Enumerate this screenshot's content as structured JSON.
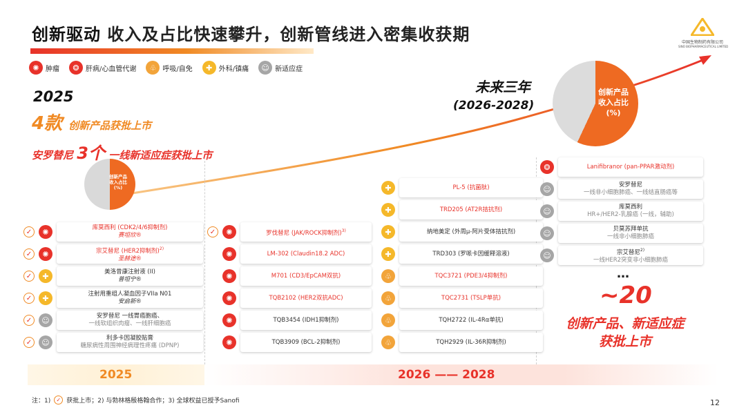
{
  "title": {
    "bold": "创新驱动",
    "rest": " 收入及占比快速攀升，创新管线进入密集收获期"
  },
  "logo": {
    "text": "中国生物制药有限公司",
    "sub": "SINO BIOPHARMACEUTICAL LIMITED"
  },
  "legend": [
    {
      "icon": "tumor-icon",
      "label": "肿瘤"
    },
    {
      "icon": "liver-icon",
      "label": "肝病/心血管代谢"
    },
    {
      "icon": "lung-icon",
      "label": "呼吸/自免"
    },
    {
      "icon": "bandage-icon",
      "label": "外科/镇痛"
    },
    {
      "icon": "person-plus-icon",
      "label": "新适应症"
    }
  ],
  "left_header": {
    "year": "2025",
    "count": "4款",
    "count_text": "创新产品获批上市",
    "drug": "安罗替尼",
    "drug_count": "3个",
    "drug_text": "一线新适应症获批上市"
  },
  "pie_small_label": [
    "创新产品",
    "收入占比",
    "(%)"
  ],
  "future": {
    "title": "未来三年",
    "years": "(2026-2028)"
  },
  "pie_big_label": [
    "创新产品",
    "收入占比",
    "(%)"
  ],
  "colors": {
    "red": "#e8322a",
    "orange": "#f08a24",
    "yellow": "#f5b82a",
    "gray": "#a6a6a6"
  },
  "col2025": [
    {
      "icon": "tumor-icon",
      "line1": "库莫西利 (CDK2/4/6抑制剂)",
      "line2": "赛坦欣®",
      "style": "red"
    },
    {
      "icon": "tumor-icon",
      "line1": "宗艾替尼 (HER2抑制剂)",
      "sup": "2)",
      "line2": "圣赫途®",
      "style": "red"
    },
    {
      "icon": "bandage-icon",
      "line1": "美洛昔康注射液 (II)",
      "line2": "普坦宁®",
      "style": "dark"
    },
    {
      "icon": "bandage-icon",
      "line1": "注射用重组人凝血因子VIIa N01",
      "line2": "安启新®",
      "style": "dark"
    },
    {
      "icon": "person-plus-icon",
      "line1": "安罗替尼 一线胃癌胞癌、",
      "line2": "一线软组织肉瘤、一线肝细胞癌",
      "style": "gray"
    },
    {
      "icon": "person-plus-icon",
      "line1": "利多卡因凝胶贴膏",
      "line2": "糖尿病性周围神经病理性疼痛 (DPNP)",
      "style": "gray"
    }
  ],
  "colA": [
    {
      "icon": "tumor-icon",
      "text": "罗伐替尼 (JAK/ROCK抑制剂)",
      "sup": "3)",
      "style": "red",
      "check": true
    },
    {
      "icon": "tumor-icon",
      "text": "LM-302 (Claudin18.2 ADC)",
      "style": "red"
    },
    {
      "icon": "tumor-icon",
      "text": "M701 (CD3/EpCAM双抗)",
      "style": "red"
    },
    {
      "icon": "tumor-icon",
      "text": "TQB2102 (HER2双抗ADC)",
      "style": "red"
    },
    {
      "icon": "tumor-icon",
      "text": "TQB3454 (IDH1抑制剂)",
      "style": "dark"
    },
    {
      "icon": "tumor-icon",
      "text": "TQB3909 (BCL-2抑制剂)",
      "style": "dark"
    }
  ],
  "colB": [
    {
      "icon": "bandage-icon",
      "text": "PL-5 (抗菌肽)",
      "style": "red"
    },
    {
      "icon": "bandage-icon",
      "text": "TRD205 (AT2R拮抗剂)",
      "style": "red"
    },
    {
      "icon": "bandage-icon",
      "text": "纳地美定 (外周μ-阿片受体拮抗剂)",
      "style": "dark"
    },
    {
      "icon": "bandage-icon",
      "text": "TRD303 (罗哌卡因缓释溶液)",
      "style": "dark"
    },
    {
      "icon": "lung-icon",
      "text": "TQC3721 (PDE3/4抑制剂)",
      "style": "red"
    },
    {
      "icon": "lung-icon",
      "text": "TQC2731 (TSLP单抗)",
      "style": "red"
    },
    {
      "icon": "lung-icon",
      "text": "TQH2722 (IL-4Rα单抗)",
      "style": "dark"
    },
    {
      "icon": "lung-icon",
      "text": "TQH2929 (IL-36R抑制剂)",
      "style": "dark"
    }
  ],
  "colC": [
    {
      "icon": "liver-icon",
      "line1": "Lanifibranor (pan-PPAR激动剂)",
      "style": "red"
    },
    {
      "icon": "person-plus-icon",
      "line1": "安罗替尼",
      "line2": "一线非小细胞肺癌、一线结直肠癌等",
      "style": "gray"
    },
    {
      "icon": "person-plus-icon",
      "line1": "库莫西利",
      "line2": "HR+/HER2-乳腺癌 (一线，辅助)",
      "style": "gray"
    },
    {
      "icon": "person-plus-icon",
      "line1": "贝莫苏拜单抗",
      "line2": "一线非小细胞肺癌",
      "style": "gray"
    },
    {
      "icon": "person-plus-icon",
      "line1": "宗艾替尼",
      "sup": "2)",
      "line2": "一线HER2突变非小细胞肺癌",
      "style": "gray"
    }
  ],
  "dots": "…",
  "count20": "~20",
  "count20_text": [
    "创新产品、新适应症",
    "获批上市"
  ],
  "band": {
    "left": "2025",
    "right": "2026 —— 2028"
  },
  "note": {
    "prefix": "注：1)",
    "part1": "获批上市；2) 与勃林格殷格翰合作；3) 全球权益已授予Sanofi"
  },
  "page_number": "12"
}
